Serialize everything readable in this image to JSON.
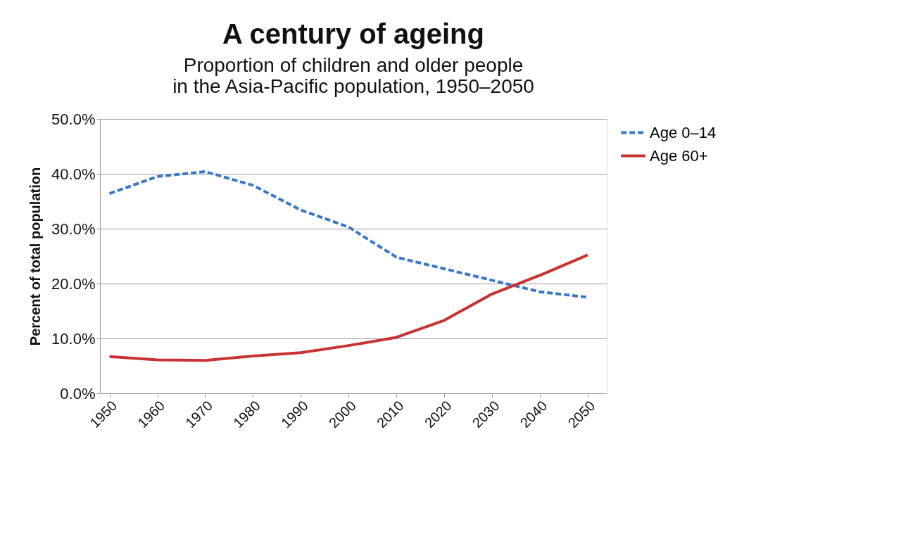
{
  "chart_data": {
    "type": "line",
    "title": "A century of ageing",
    "subtitle": [
      "Proportion of children and older people",
      "in the Asia-Pacific population, 1950–2050"
    ],
    "ylabel": "Percent of total population",
    "x": [
      1950,
      1960,
      1970,
      1980,
      1990,
      2000,
      2010,
      2020,
      2030,
      2040,
      2050
    ],
    "series": [
      {
        "name": "Age 0–14",
        "color": "#3a78c6",
        "line_style": "dashed",
        "values": [
          36.4,
          39.5,
          40.4,
          37.9,
          33.4,
          30.3,
          24.8,
          22.7,
          20.6,
          18.5,
          17.5
        ]
      },
      {
        "name": "Age 60+",
        "color": "#c83232",
        "line_style": "solid",
        "values": [
          6.7,
          6.1,
          6.0,
          6.8,
          7.4,
          8.7,
          10.2,
          13.3,
          18.1,
          21.5,
          25.2
        ]
      }
    ],
    "xlim": [
      1948,
      2054
    ],
    "xticks": [
      1950,
      1960,
      1970,
      1980,
      1990,
      2000,
      2010,
      2020,
      2030,
      2040,
      2050
    ],
    "ylim": [
      0,
      50
    ],
    "yticks": [
      {
        "value": 0,
        "label": "0.0%"
      },
      {
        "value": 10,
        "label": "10.0%"
      },
      {
        "value": 20,
        "label": "20.0%"
      },
      {
        "value": 30,
        "label": "30.0%"
      },
      {
        "value": 40,
        "label": "40.0%"
      },
      {
        "value": 50,
        "label": "50.0%"
      }
    ],
    "grid": "y",
    "legend": "right",
    "marker": "none"
  }
}
